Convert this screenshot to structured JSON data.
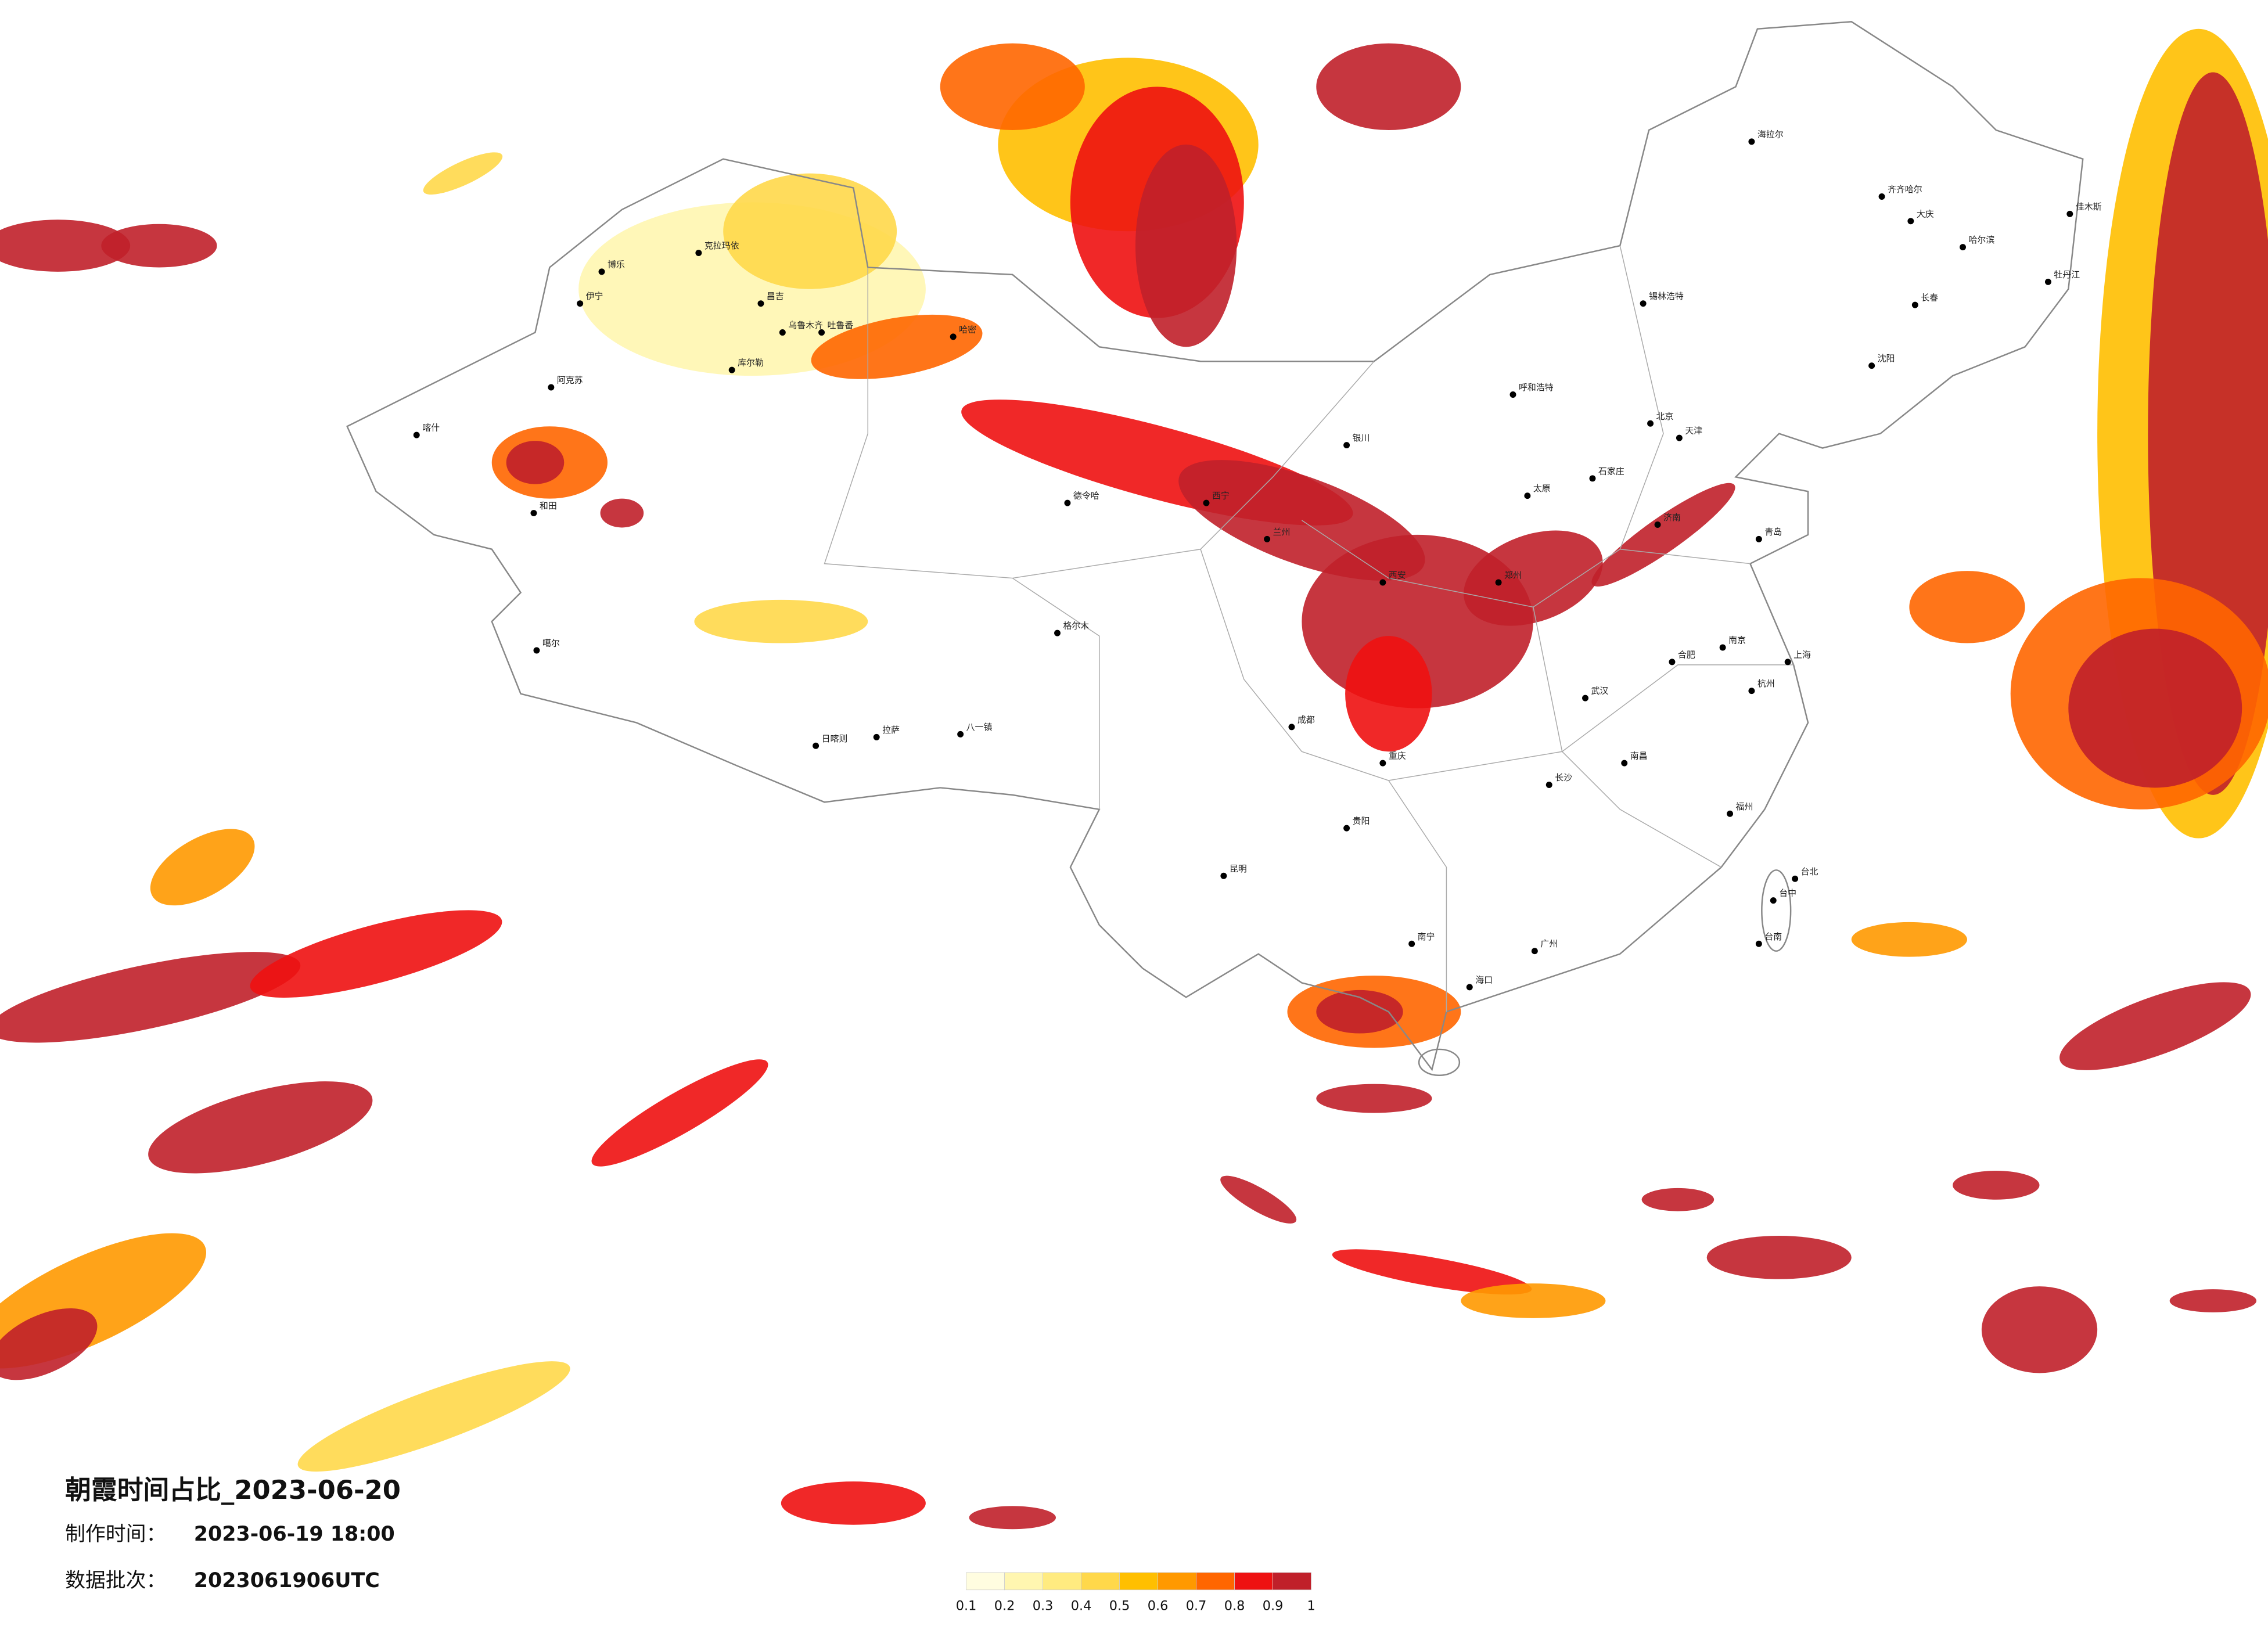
{
  "title": "朝霞时间占比_2023-06-20",
  "info": [
    {
      "label": "制作时间：",
      "value": "2023-06-19 18:00"
    },
    {
      "label": "数据批次：",
      "value": "2023061906UTC"
    }
  ],
  "legend": {
    "colors": [
      "#fffde0",
      "#fff6b0",
      "#ffeb80",
      "#ffd84a",
      "#ffbf00",
      "#ff9900",
      "#ff6600",
      "#ee1111",
      "#c0202a"
    ],
    "ticks": [
      0.1,
      0.2,
      0.3,
      0.4,
      0.5,
      0.6,
      0.7,
      0.8,
      0.9,
      1
    ]
  },
  "cities": [
    "乌鲁木齐",
    "克拉玛依",
    "伊宁",
    "博乐",
    "昌吉",
    "吐鲁番",
    "哈密",
    "库尔勒",
    "阿克苏",
    "喀什",
    "和田",
    "噶尔",
    "日喀则",
    "拉萨",
    "八一镇",
    "格尔木",
    "德令哈",
    "西宁",
    "兰州",
    "银川",
    "呼和浩特",
    "锡林浩特",
    "北京",
    "天津",
    "石家庄",
    "太原",
    "济南",
    "青岛",
    "郑州",
    "西安",
    "武汉",
    "合肥",
    "南京",
    "上海",
    "杭州",
    "南昌",
    "长沙",
    "福州",
    "成都",
    "重庆",
    "贵阳",
    "昆明",
    "南宁",
    "广州",
    "海口",
    "台北",
    "台中",
    "台南",
    "长春",
    "哈尔滨",
    "齐齐哈尔",
    "大庆",
    "海拉尔",
    "佳木斯",
    "牡丹江",
    "沈阳"
  ]
}
